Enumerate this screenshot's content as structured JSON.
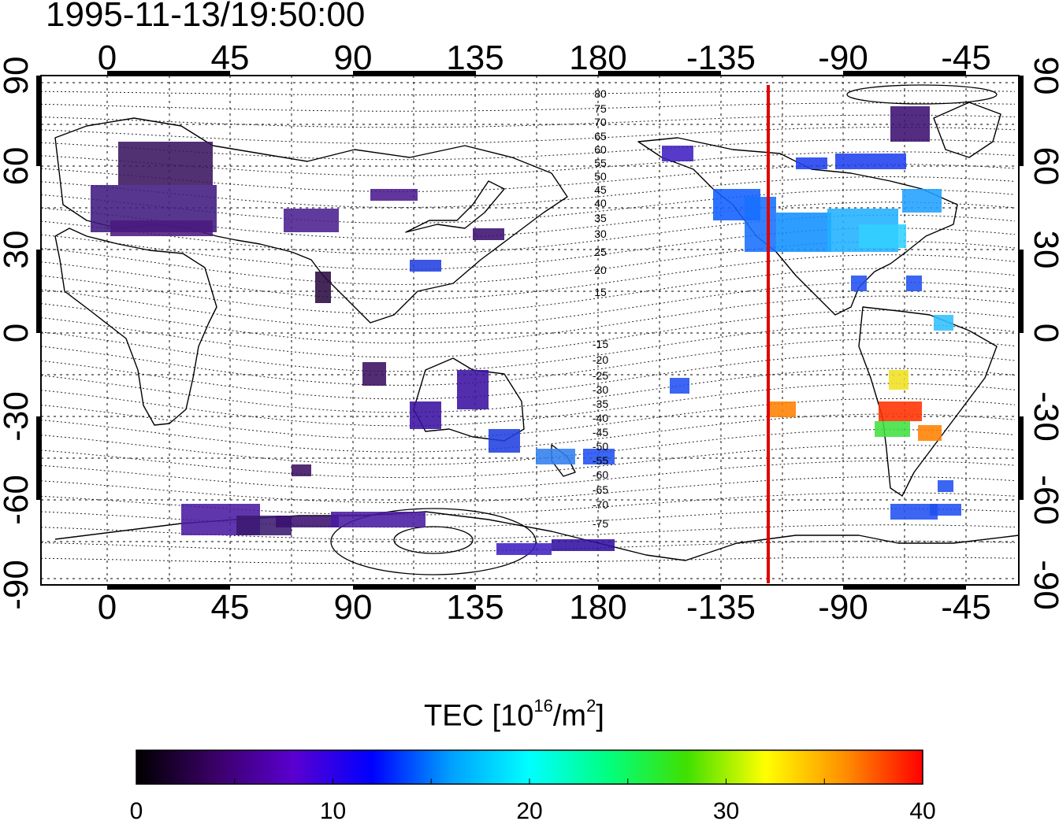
{
  "timestamp": "1995-11-13/19:50:00",
  "map": {
    "lon_ticks": [
      "0",
      "45",
      "90",
      "135",
      "180",
      "-135",
      "-90",
      "-45"
    ],
    "lat_ticks_left": [
      "90",
      "60",
      "30",
      "0",
      "-30",
      "-60",
      "-90"
    ],
    "lat_ticks_right": [
      "90",
      "60",
      "30",
      "0",
      "-30",
      "-60",
      "-90"
    ],
    "contour_labels_north": [
      "80",
      "75",
      "70",
      "65",
      "60",
      "55",
      "50",
      "45",
      "40",
      "35",
      "30",
      "25",
      "20",
      "15"
    ],
    "contour_labels_south": [
      "-15",
      "-20",
      "-25",
      "-30",
      "-35",
      "-40",
      "-45",
      "-50",
      "-55",
      "-60",
      "-65",
      "-70",
      "-75"
    ],
    "terminator_color": "#e00000",
    "grid": "dotted"
  },
  "colorbar": {
    "title_prefix": "TEC  [10",
    "title_exp": "16",
    "title_mid": "/m",
    "title_exp2": "2",
    "title_suffix": "]",
    "ticks": [
      "0",
      "10",
      "20",
      "30",
      "40"
    ],
    "colormap": [
      "#000000",
      "#3a0066",
      "#5a00d0",
      "#0000ff",
      "#00a0ff",
      "#00ffff",
      "#00ff80",
      "#40e000",
      "#ffff00",
      "#ff9000",
      "#ff0000"
    ]
  }
}
